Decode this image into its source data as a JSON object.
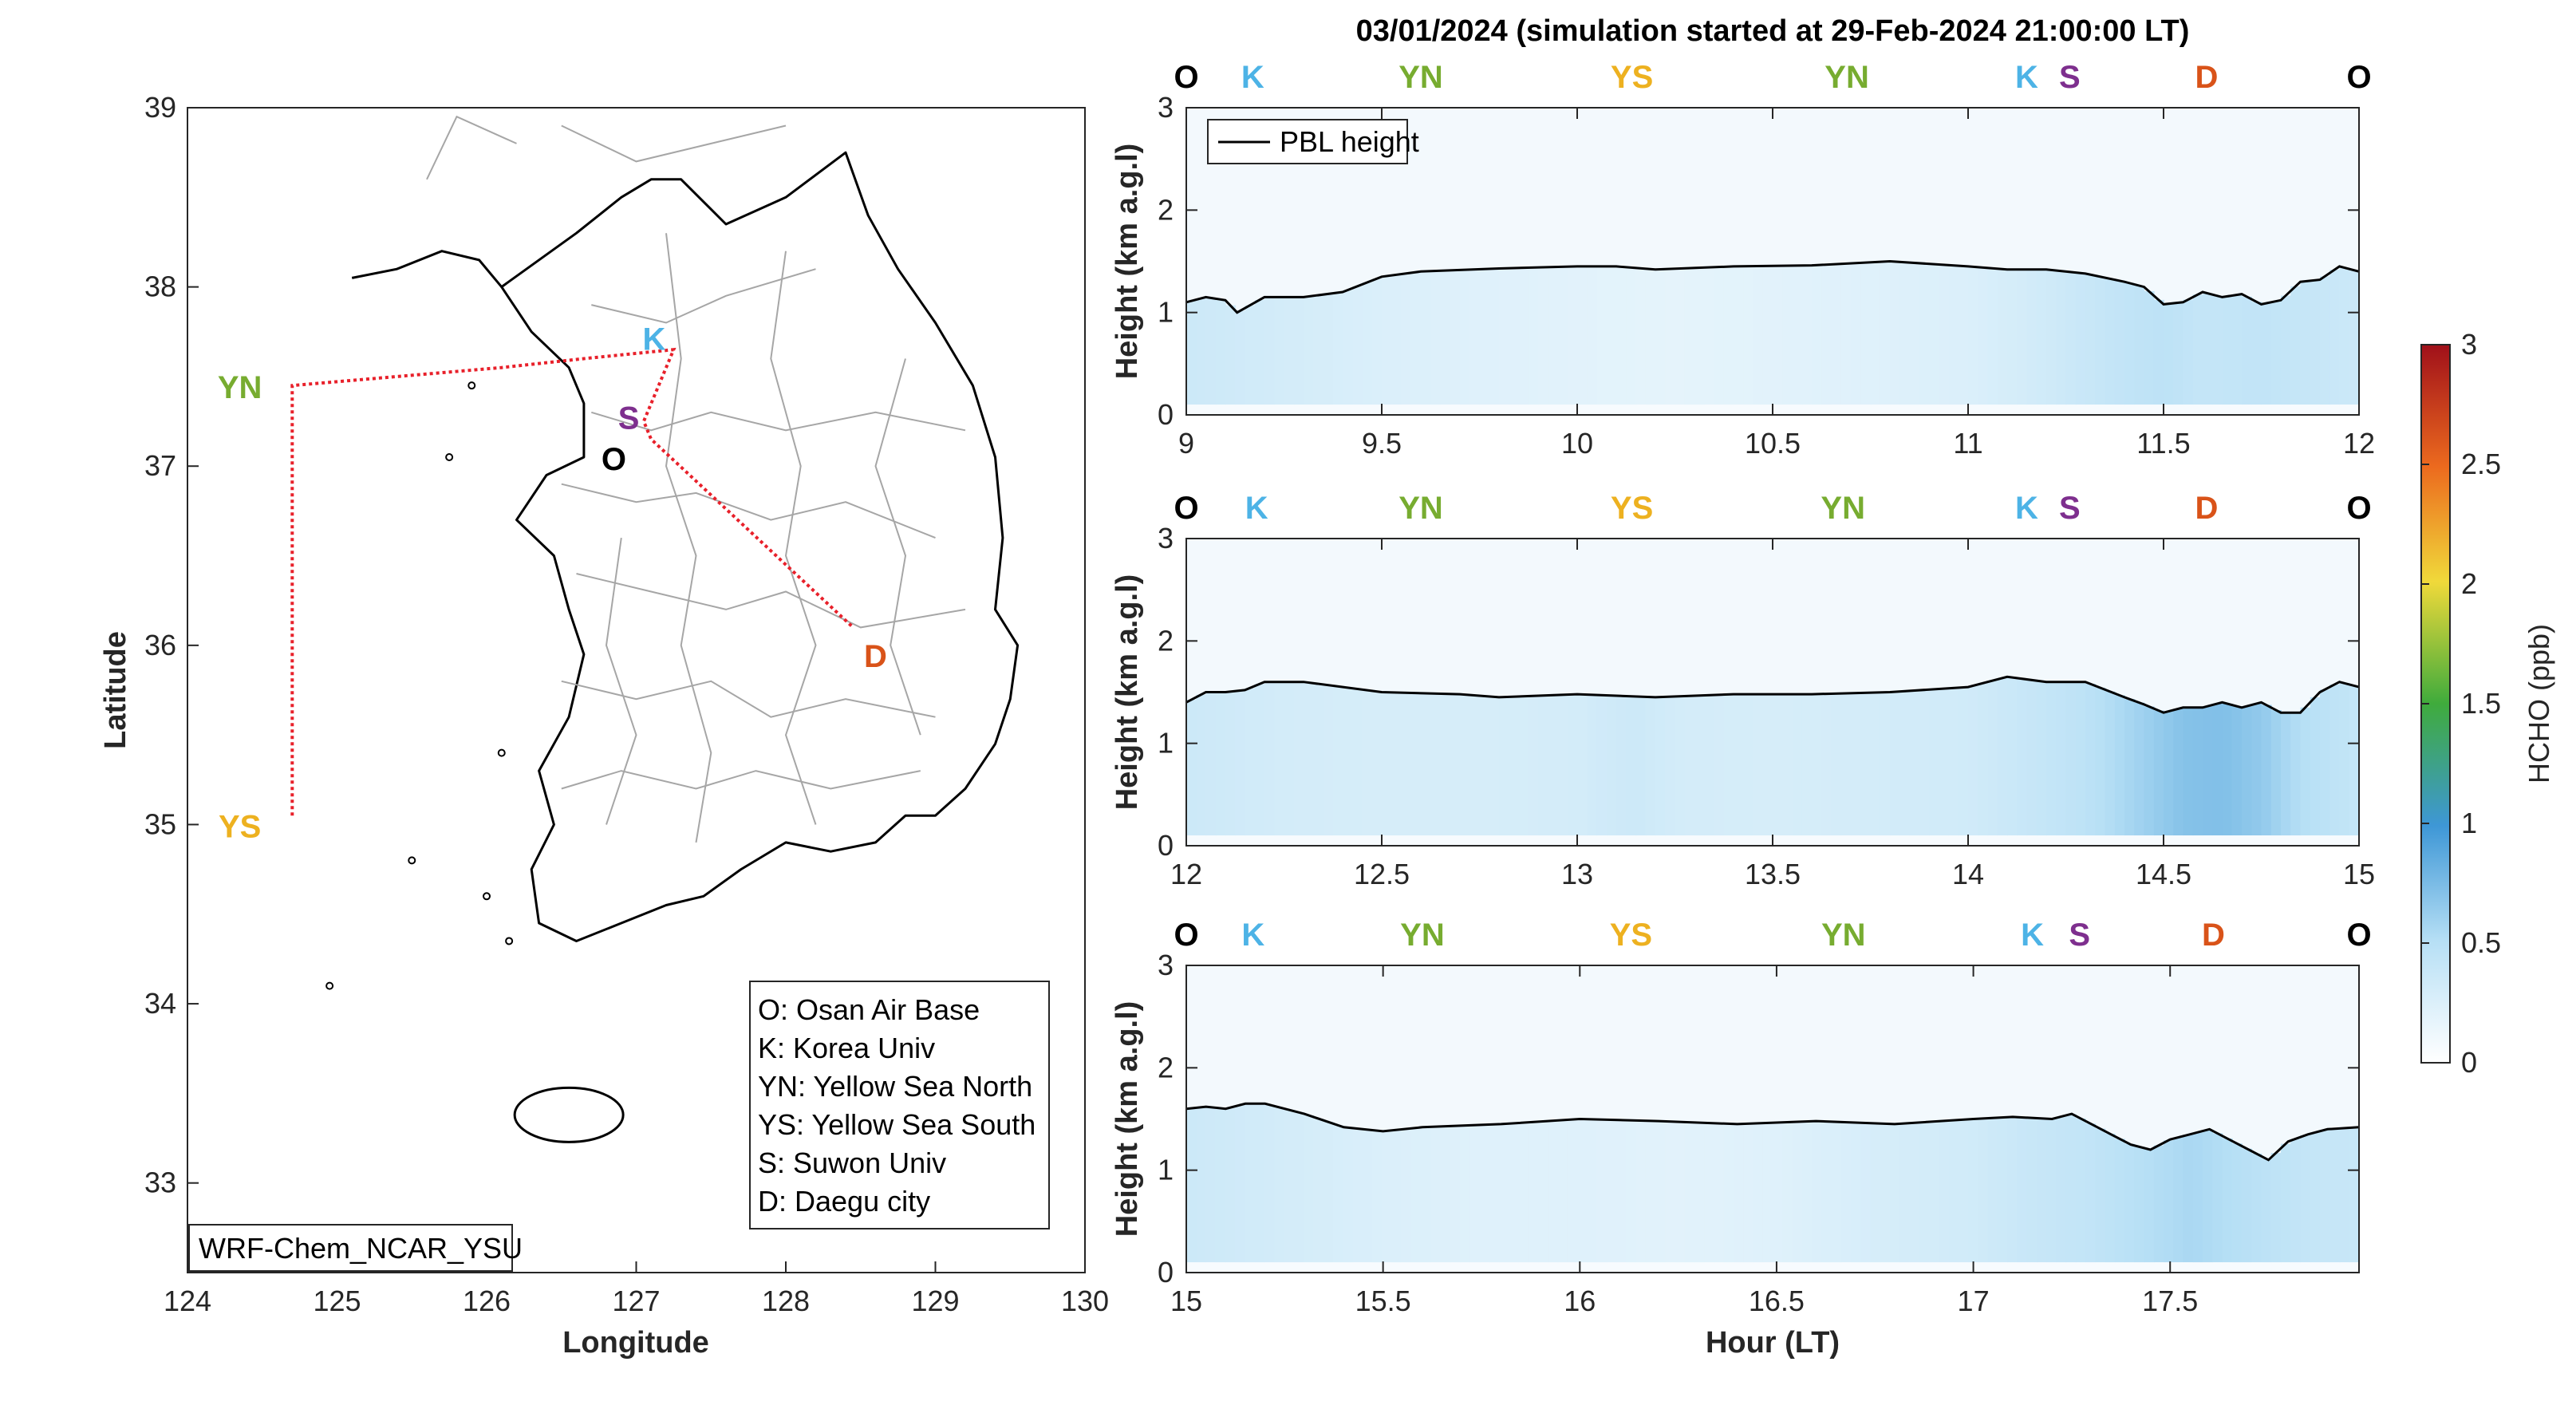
{
  "figure": {
    "title": "03/01/2024 (simulation started at 29-Feb-2024 21:00:00 LT)"
  },
  "map": {
    "xlabel": "Longitude",
    "ylabel": "Latitude",
    "xlim": [
      124,
      130
    ],
    "ylim": [
      32.5,
      39
    ],
    "xticks": [
      "124",
      "125",
      "126",
      "127",
      "128",
      "129",
      "130"
    ],
    "yticks": [
      "33",
      "34",
      "35",
      "36",
      "37",
      "38",
      "39"
    ],
    "model_label": "WRF-Chem_NCAR_YSU",
    "flight_track_color": "#e8202a",
    "flight_track": [
      [
        124.7,
        35.05
      ],
      [
        124.7,
        37.45
      ],
      [
        126.1,
        37.55
      ],
      [
        126.65,
        37.6
      ],
      [
        127.25,
        37.65
      ],
      [
        127.05,
        37.25
      ],
      [
        127.1,
        37.15
      ],
      [
        128.45,
        36.1
      ]
    ],
    "sites": [
      {
        "code": "O",
        "lon": 126.85,
        "lat": 37.05,
        "color": "#000000"
      },
      {
        "code": "K",
        "lon": 127.12,
        "lat": 37.72,
        "color": "#4db3e6"
      },
      {
        "code": "YN",
        "lon": 124.35,
        "lat": 37.45,
        "color": "#77ac30"
      },
      {
        "code": "YS",
        "lon": 124.35,
        "lat": 35.0,
        "color": "#edb120"
      },
      {
        "code": "S",
        "lon": 126.95,
        "lat": 37.28,
        "color": "#7e2f8e"
      },
      {
        "code": "D",
        "lon": 128.6,
        "lat": 35.95,
        "color": "#d95319"
      }
    ],
    "legend": [
      "O: Osan Air Base",
      "K: Korea Univ",
      "YN: Yellow Sea North",
      "YS: Yellow Sea South",
      "S: Suwon Univ",
      "D: Daegu city"
    ]
  },
  "chart_data": [
    {
      "type": "heatmap",
      "title": "",
      "xlabel": "",
      "ylabel": "Height (km a.g.l)",
      "xlim": [
        9,
        12
      ],
      "ylim": [
        0,
        3
      ],
      "xticks": [
        "9",
        "9.5",
        "10",
        "10.5",
        "11",
        "11.5",
        "12"
      ],
      "yticks": [
        "0",
        "1",
        "2",
        "3"
      ],
      "site_labels": [
        {
          "code": "O",
          "hour": 9.0
        },
        {
          "code": "K",
          "hour": 9.17
        },
        {
          "code": "YN",
          "hour": 9.6
        },
        {
          "code": "YS",
          "hour": 10.14
        },
        {
          "code": "YN",
          "hour": 10.69
        },
        {
          "code": "K",
          "hour": 11.15
        },
        {
          "code": "S",
          "hour": 11.26
        },
        {
          "code": "D",
          "hour": 11.61
        },
        {
          "code": "O",
          "hour": 12.0
        }
      ],
      "series": [
        {
          "name": "PBL height",
          "x": [
            9.0,
            9.05,
            9.1,
            9.13,
            9.2,
            9.3,
            9.4,
            9.5,
            9.6,
            9.8,
            10.0,
            10.1,
            10.2,
            10.4,
            10.6,
            10.8,
            11.0,
            11.1,
            11.2,
            11.3,
            11.4,
            11.45,
            11.5,
            11.55,
            11.6,
            11.65,
            11.7,
            11.75,
            11.8,
            11.85,
            11.9,
            11.95,
            12.0
          ],
          "y": [
            1.1,
            1.15,
            1.12,
            1.0,
            1.15,
            1.15,
            1.2,
            1.35,
            1.4,
            1.43,
            1.45,
            1.45,
            1.42,
            1.45,
            1.46,
            1.5,
            1.45,
            1.42,
            1.42,
            1.38,
            1.3,
            1.25,
            1.08,
            1.1,
            1.2,
            1.15,
            1.18,
            1.08,
            1.12,
            1.3,
            1.32,
            1.45,
            1.4
          ]
        }
      ],
      "hcho_columns": {
        "hour": [
          9.0,
          9.25,
          9.5,
          9.75,
          10.0,
          10.25,
          10.5,
          10.75,
          11.0,
          11.15,
          11.25,
          11.4,
          11.5,
          11.6,
          11.75,
          11.9,
          12.0
        ],
        "ppb": [
          0.35,
          0.3,
          0.25,
          0.22,
          0.2,
          0.18,
          0.2,
          0.22,
          0.25,
          0.3,
          0.35,
          0.42,
          0.45,
          0.4,
          0.42,
          0.38,
          0.35
        ]
      }
    },
    {
      "type": "heatmap",
      "title": "",
      "xlabel": "",
      "ylabel": "Height (km a.g.l)",
      "xlim": [
        12,
        15
      ],
      "ylim": [
        0,
        3
      ],
      "xticks": [
        "12",
        "12.5",
        "13",
        "13.5",
        "14",
        "14.5",
        "15"
      ],
      "yticks": [
        "0",
        "1",
        "2",
        "3"
      ],
      "site_labels": [
        {
          "code": "O",
          "hour": 12.0
        },
        {
          "code": "K",
          "hour": 12.18
        },
        {
          "code": "YN",
          "hour": 12.6
        },
        {
          "code": "YS",
          "hour": 13.14
        },
        {
          "code": "YN",
          "hour": 13.68
        },
        {
          "code": "K",
          "hour": 14.15
        },
        {
          "code": "S",
          "hour": 14.26
        },
        {
          "code": "D",
          "hour": 14.61
        },
        {
          "code": "O",
          "hour": 15.0
        }
      ],
      "series": [
        {
          "name": "PBL height",
          "x": [
            12.0,
            12.05,
            12.1,
            12.15,
            12.2,
            12.3,
            12.5,
            12.7,
            12.8,
            13.0,
            13.2,
            13.4,
            13.6,
            13.8,
            14.0,
            14.1,
            14.2,
            14.3,
            14.4,
            14.45,
            14.5,
            14.55,
            14.6,
            14.65,
            14.7,
            14.75,
            14.8,
            14.85,
            14.9,
            14.95,
            15.0
          ],
          "y": [
            1.4,
            1.5,
            1.5,
            1.52,
            1.6,
            1.6,
            1.5,
            1.48,
            1.45,
            1.48,
            1.45,
            1.48,
            1.48,
            1.5,
            1.55,
            1.65,
            1.6,
            1.6,
            1.45,
            1.38,
            1.3,
            1.35,
            1.35,
            1.4,
            1.35,
            1.4,
            1.3,
            1.3,
            1.5,
            1.6,
            1.55
          ]
        }
      ],
      "hcho_columns": {
        "hour": [
          12.0,
          12.25,
          12.5,
          12.75,
          13.0,
          13.15,
          13.25,
          13.5,
          13.75,
          14.0,
          14.15,
          14.3,
          14.45,
          14.55,
          14.65,
          14.75,
          14.85,
          15.0
        ],
        "ppb": [
          0.35,
          0.3,
          0.28,
          0.28,
          0.3,
          0.35,
          0.3,
          0.28,
          0.3,
          0.32,
          0.38,
          0.45,
          0.6,
          0.7,
          0.72,
          0.65,
          0.5,
          0.4
        ]
      }
    },
    {
      "type": "heatmap",
      "title": "",
      "xlabel": "Hour (LT)",
      "ylabel": "Height (km a.g.l)",
      "xlim": [
        15,
        17.98
      ],
      "ylim": [
        0,
        3
      ],
      "xticks": [
        "15",
        "15.5",
        "16",
        "16.5",
        "17",
        "17.5"
      ],
      "yticks": [
        "0",
        "1",
        "2",
        "3"
      ],
      "site_labels": [
        {
          "code": "O",
          "hour": 15.0
        },
        {
          "code": "K",
          "hour": 15.17
        },
        {
          "code": "YN",
          "hour": 15.6
        },
        {
          "code": "YS",
          "hour": 16.13
        },
        {
          "code": "YN",
          "hour": 16.67
        },
        {
          "code": "K",
          "hour": 17.15
        },
        {
          "code": "S",
          "hour": 17.27
        },
        {
          "code": "D",
          "hour": 17.61
        },
        {
          "code": "O",
          "hour": 17.98
        }
      ],
      "series": [
        {
          "name": "PBL height",
          "x": [
            15.0,
            15.05,
            15.1,
            15.15,
            15.2,
            15.3,
            15.4,
            15.5,
            15.6,
            15.8,
            16.0,
            16.2,
            16.4,
            16.6,
            16.8,
            17.0,
            17.1,
            17.2,
            17.25,
            17.3,
            17.35,
            17.4,
            17.45,
            17.5,
            17.55,
            17.6,
            17.65,
            17.7,
            17.75,
            17.8,
            17.85,
            17.9,
            17.98
          ],
          "y": [
            1.6,
            1.62,
            1.6,
            1.65,
            1.65,
            1.55,
            1.42,
            1.38,
            1.42,
            1.45,
            1.5,
            1.48,
            1.45,
            1.48,
            1.45,
            1.5,
            1.52,
            1.5,
            1.55,
            1.45,
            1.35,
            1.25,
            1.2,
            1.3,
            1.35,
            1.4,
            1.3,
            1.2,
            1.1,
            1.28,
            1.35,
            1.4,
            1.42
          ]
        }
      ],
      "hcho_columns": {
        "hour": [
          15.0,
          15.25,
          15.5,
          15.75,
          16.0,
          16.25,
          16.5,
          16.75,
          17.0,
          17.15,
          17.3,
          17.45,
          17.55,
          17.65,
          17.75,
          17.85,
          17.98
        ],
        "ppb": [
          0.35,
          0.3,
          0.25,
          0.22,
          0.22,
          0.2,
          0.22,
          0.28,
          0.32,
          0.38,
          0.42,
          0.5,
          0.55,
          0.5,
          0.45,
          0.4,
          0.38
        ]
      }
    }
  ],
  "colorbar": {
    "label": "HCHO (ppb)",
    "range": [
      0,
      3
    ],
    "ticks": [
      "0",
      "0.5",
      "1",
      "1.5",
      "2",
      "2.5",
      "3"
    ],
    "colors": [
      "#ffffff",
      "#4da7e2",
      "#2fa83a",
      "#f3e03a",
      "#ee6a1c",
      "#a20f17"
    ]
  },
  "legend_pbl": "PBL height"
}
